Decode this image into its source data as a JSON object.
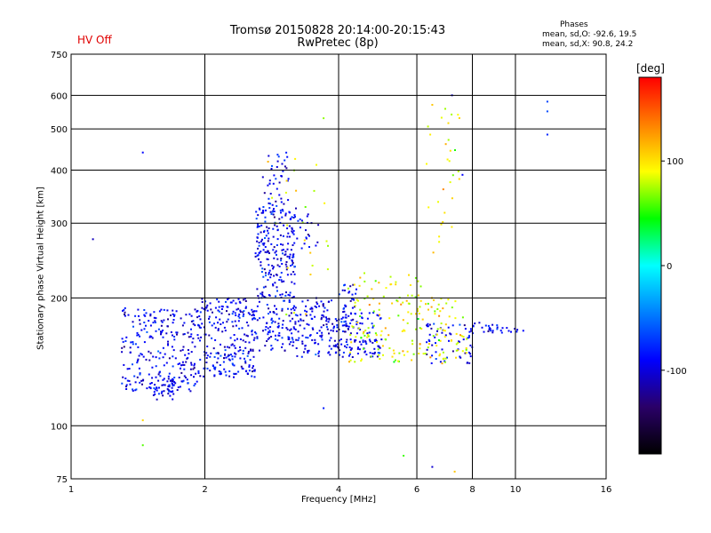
{
  "header": {
    "title_line1": "Tromsø 20150828 20:14:00-20:15:43",
    "title_line2": "RwPretec (8p)",
    "hv_status": "HV Off",
    "phases_title": "Phases",
    "phases_o": "mean, sd,O: -92.6, 19.5",
    "phases_x": "mean, sd,X:  90.8, 24.2"
  },
  "colors": {
    "hv_status": "#e00000",
    "grid": "#000000"
  },
  "chart_data": {
    "type": "scatter",
    "xlabel": "Frequency [MHz]",
    "ylabel": "Stationary phase Virtual Height [km]",
    "xscale": "log",
    "yscale": "log",
    "xlim": [
      1,
      16
    ],
    "ylim": [
      75,
      750
    ],
    "x_ticks": [
      1,
      2,
      4,
      6,
      8,
      10,
      16
    ],
    "y_ticks": [
      75,
      100,
      200,
      300,
      400,
      500,
      600,
      750
    ],
    "grid": true,
    "colorbar": {
      "unit": "[deg]",
      "ticks": [
        100,
        0,
        -100
      ],
      "range": [
        -180,
        180
      ],
      "colors": [
        "#000000",
        "#2a0068",
        "#0000ff",
        "#0080ff",
        "#00ffff",
        "#00ff00",
        "#ffff00",
        "#ff8000",
        "#ff0000"
      ]
    },
    "o_mode": {
      "phase_mean_deg": -92.6,
      "phase_sd_deg": 19.5,
      "clusters": [
        {
          "f": [
            1.3,
            1.95
          ],
          "h": [
            120,
            190
          ],
          "n": 260
        },
        {
          "f": [
            1.95,
            2.6
          ],
          "h": [
            130,
            200
          ],
          "n": 240
        },
        {
          "f": [
            2.6,
            3.2
          ],
          "h": [
            150,
            330
          ],
          "n": 300
        },
        {
          "f": [
            2.7,
            3.1
          ],
          "h": [
            330,
            440
          ],
          "n": 40
        },
        {
          "f": [
            3.2,
            3.9
          ],
          "h": [
            145,
            200
          ],
          "n": 110
        },
        {
          "f": [
            1.5,
            1.7
          ],
          "h": [
            115,
            130
          ],
          "n": 40
        },
        {
          "f": [
            2.9,
            3.6
          ],
          "h": [
            250,
            330
          ],
          "n": 40
        },
        {
          "f": [
            3.9,
            5.0
          ],
          "h": [
            145,
            160
          ],
          "n": 70
        },
        {
          "f": [
            3.9,
            5.0
          ],
          "h": [
            165,
            185
          ],
          "n": 60
        },
        {
          "f": [
            4.0,
            4.4
          ],
          "h": [
            185,
            215
          ],
          "n": 25
        },
        {
          "f": [
            6.3,
            8.0
          ],
          "h": [
            140,
            175
          ],
          "n": 60
        },
        {
          "f": [
            8.0,
            10.6
          ],
          "h": [
            165,
            175
          ],
          "n": 30
        }
      ],
      "points": [
        {
          "f": 1.12,
          "h": 275
        },
        {
          "f": 1.45,
          "h": 440
        },
        {
          "f": 11.8,
          "h": 580
        },
        {
          "f": 11.8,
          "h": 550
        },
        {
          "f": 11.8,
          "h": 485
        },
        {
          "f": 7.2,
          "h": 600
        },
        {
          "f": 7.6,
          "h": 390
        },
        {
          "f": 6.5,
          "h": 80
        },
        {
          "f": 3.7,
          "h": 110
        }
      ]
    },
    "x_mode": {
      "phase_mean_deg": 90.8,
      "phase_sd_deg": 24.2,
      "clusters": [
        {
          "f": [
            4.2,
            6.2
          ],
          "h": [
            140,
            230
          ],
          "n": 120
        },
        {
          "f": [
            6.0,
            7.8
          ],
          "h": [
            140,
            200
          ],
          "n": 70
        },
        {
          "f": [
            6.3,
            7.5
          ],
          "h": [
            250,
            560
          ],
          "n": 30
        },
        {
          "f": [
            2.6,
            3.8
          ],
          "h": [
            180,
            430
          ],
          "n": 25
        }
      ],
      "points": [
        {
          "f": 1.45,
          "h": 103
        },
        {
          "f": 1.45,
          "h": 90
        },
        {
          "f": 5.6,
          "h": 85
        },
        {
          "f": 6.5,
          "h": 570
        },
        {
          "f": 7.3,
          "h": 78
        },
        {
          "f": 3.7,
          "h": 530
        }
      ]
    }
  }
}
